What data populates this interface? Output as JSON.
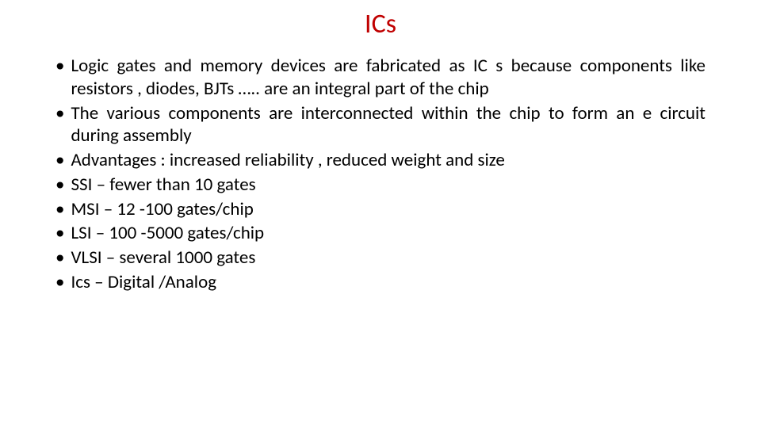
{
  "slide": {
    "title": "ICs",
    "title_color": "#c00000",
    "title_fontsize": 34,
    "body_fontsize": 23,
    "body_color": "#000000",
    "background_color": "#ffffff",
    "bullets": [
      {
        "text": "Logic gates and memory devices are fabricated as IC s because components like resistors , diodes, BJTs ….. are an integral part of the chip",
        "justify": true
      },
      {
        "text": "The various components are interconnected within the chip to form an e circuit during assembly",
        "justify": true
      },
      {
        "text": "Advantages : increased reliability , reduced weight and size",
        "justify": false
      },
      {
        "text": "SSI – fewer than 10 gates",
        "justify": false
      },
      {
        "text": "MSI – 12 -100 gates/chip",
        "justify": false
      },
      {
        "text": "LSI – 100 -5000 gates/chip",
        "justify": false
      },
      {
        "text": "VLSI – several 1000 gates",
        "justify": false
      },
      {
        "text": "Ics – Digital /Analog",
        "justify": false
      }
    ]
  }
}
